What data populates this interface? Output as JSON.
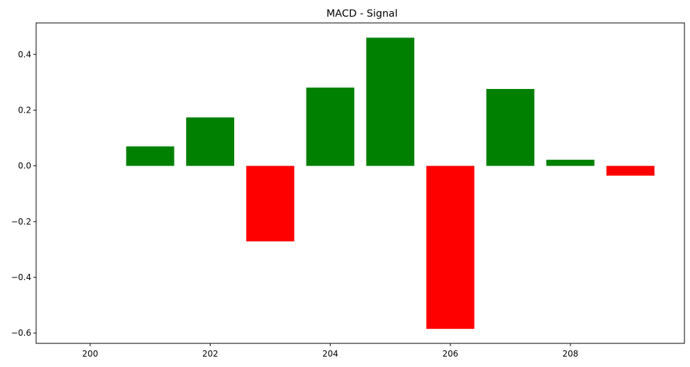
{
  "chart_data": {
    "type": "bar",
    "title": "MACD - Signal",
    "xlabel": "",
    "ylabel": "",
    "x": [
      201,
      202,
      203,
      204,
      205,
      206,
      207,
      208,
      209
    ],
    "values": [
      0.07,
      0.174,
      -0.271,
      0.281,
      0.46,
      -0.585,
      0.276,
      0.022,
      -0.035
    ],
    "xlim": [
      199.1,
      209.9
    ],
    "ylim": [
      -0.637,
      0.513
    ],
    "xticks": [
      200,
      202,
      204,
      206,
      208
    ],
    "xtick_labels": [
      "200",
      "202",
      "204",
      "206",
      "208"
    ],
    "yticks": [
      -0.6,
      -0.4,
      -0.2,
      0.0,
      0.2,
      0.4
    ],
    "ytick_labels": [
      "−0.6",
      "−0.4",
      "−0.2",
      "0.0",
      "0.2",
      "0.4"
    ],
    "bar_width": 0.8,
    "grid": false,
    "legend": "none",
    "colors": {
      "positive": "#008000",
      "negative": "#ff0000"
    }
  }
}
